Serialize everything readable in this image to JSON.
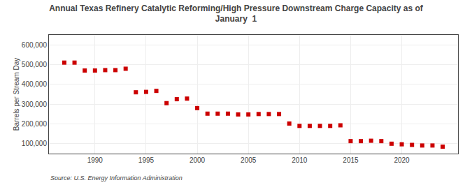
{
  "chart_data": {
    "type": "scatter",
    "title": "Annual Texas Refinery Catalytic Reforming/High Pressure Downstream Charge Capacity as of\nJanuary  1",
    "ylabel": "Barrels per Stream Day",
    "source": "Source: U.S. Energy Information Administration",
    "color": "#cc0000",
    "marker": "square",
    "grid": true,
    "xlim": [
      1985.5,
      2025.5
    ],
    "xticks": [
      1990,
      1995,
      2000,
      2005,
      2010,
      2015,
      2020
    ],
    "ylim": [
      50000,
      650000
    ],
    "yticks": [
      {
        "value": 100000,
        "label": "100,000"
      },
      {
        "value": 200000,
        "label": "200,000"
      },
      {
        "value": 300000,
        "label": "300,000"
      },
      {
        "value": 400000,
        "label": "400,000"
      },
      {
        "value": 500000,
        "label": "500,000"
      },
      {
        "value": 600000,
        "label": "600,000"
      }
    ],
    "x": [
      1987,
      1988,
      1989,
      1990,
      1991,
      1992,
      1993,
      1994,
      1995,
      1996,
      1997,
      1998,
      1999,
      2000,
      2001,
      2002,
      2003,
      2004,
      2005,
      2006,
      2007,
      2008,
      2009,
      2010,
      2011,
      2012,
      2013,
      2014,
      2015,
      2016,
      2017,
      2018,
      2019,
      2020,
      2021,
      2022,
      2023,
      2024
    ],
    "values": [
      510000,
      510000,
      470000,
      470000,
      472000,
      472000,
      479000,
      360000,
      362000,
      367000,
      305000,
      325000,
      328000,
      280000,
      252000,
      252000,
      252000,
      248000,
      248000,
      250000,
      250000,
      250000,
      202000,
      190000,
      190000,
      190000,
      190000,
      193000,
      113000,
      113000,
      115000,
      113000,
      100000,
      97000,
      94000,
      91000,
      91000,
      85000
    ]
  }
}
